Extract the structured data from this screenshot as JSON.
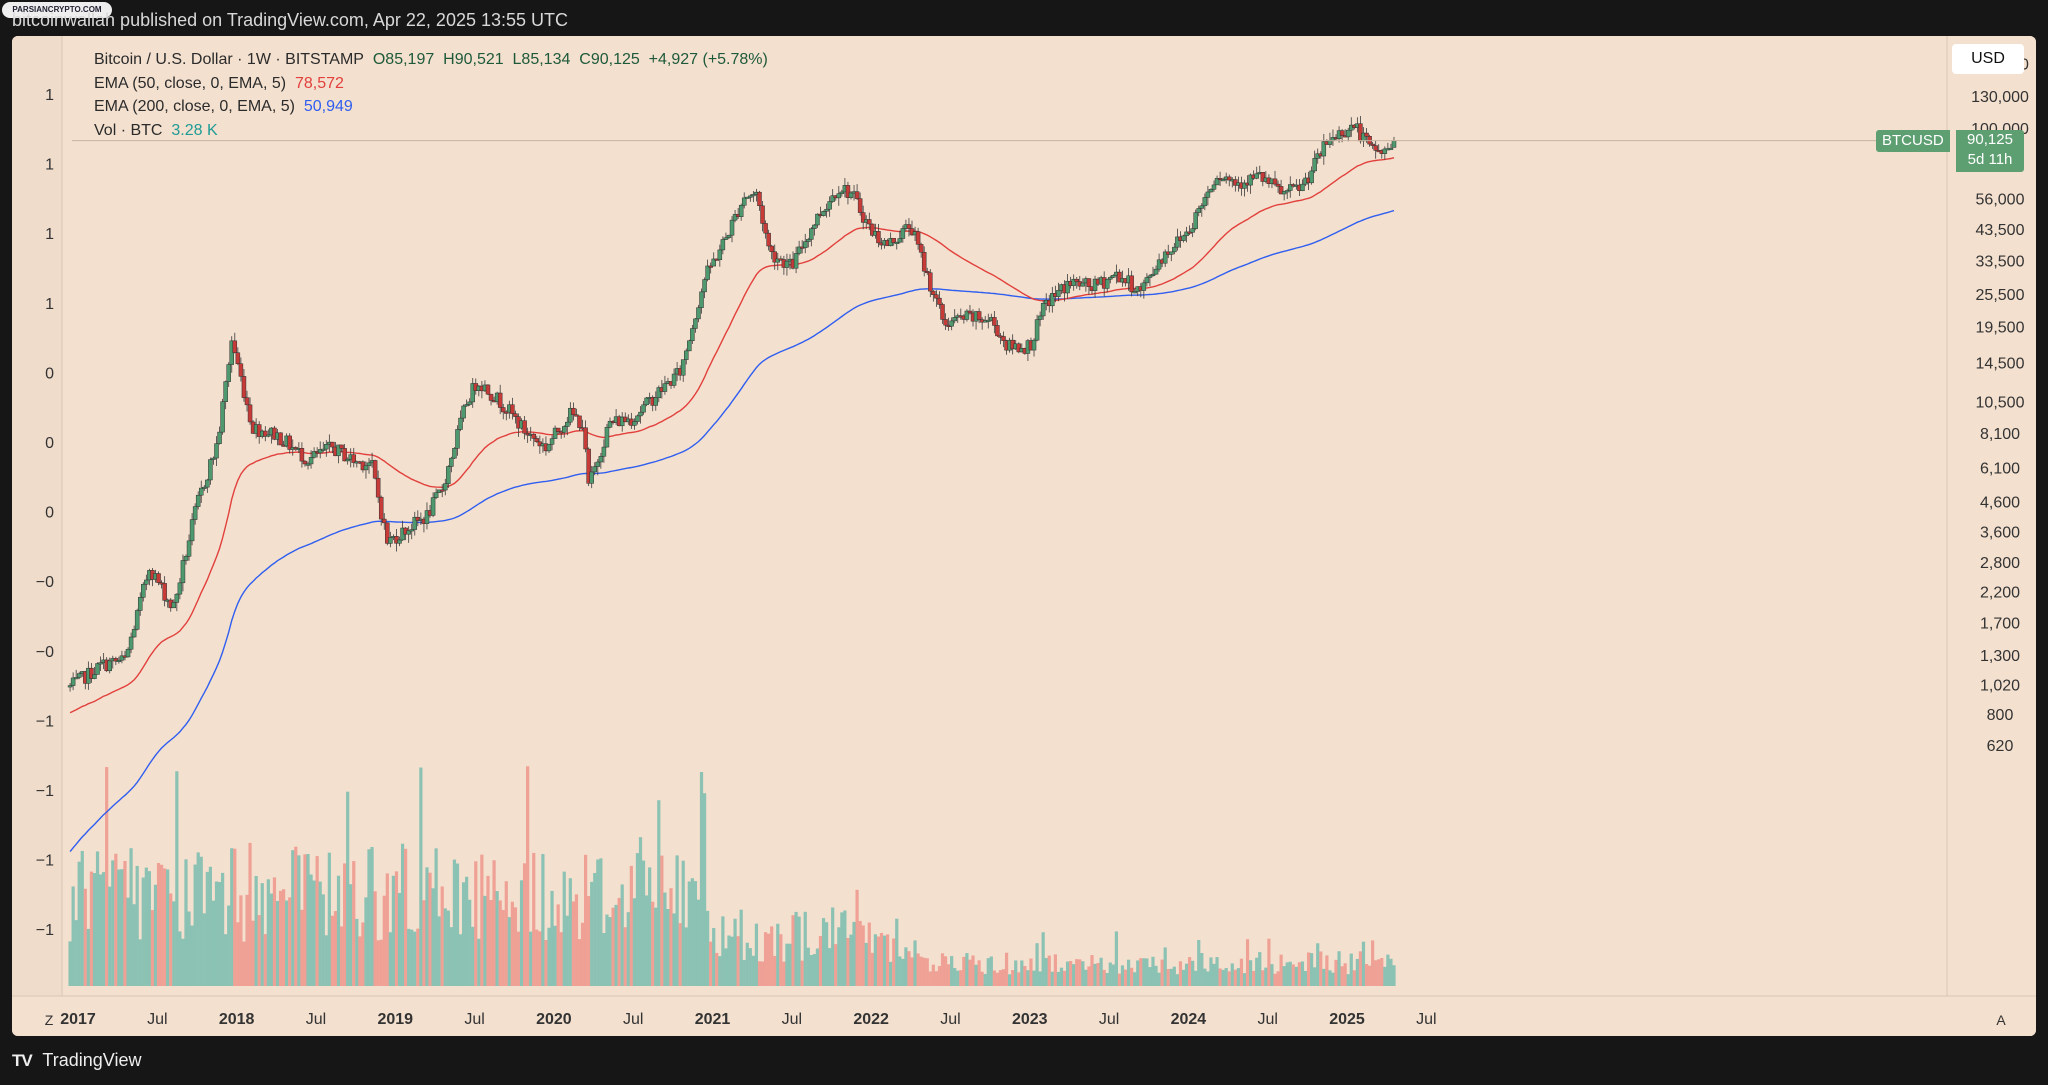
{
  "header": {
    "publisher": "bitcoinwallah published on TradingView.com, Apr 22, 2025 13:55 UTC",
    "watermark": "PARSIANCRYPTO.COM"
  },
  "legend": {
    "symbol": "Bitcoin / U.S. Dollar · 1W · BITSTAMP",
    "open": "O85,197",
    "high": "H90,521",
    "low": "L85,134",
    "close": "C90,125",
    "change": "+4,927 (+5.78%)",
    "ema50_label": "EMA (50, close, 0, EMA, 5)",
    "ema50_value": "78,572",
    "ema200_label": "EMA (200, close, 0, EMA, 5)",
    "ema200_value": "50,949",
    "vol_label": "Vol · BTC",
    "vol_value": "3.28 K"
  },
  "currency_button": "USD",
  "price_tag": {
    "symbol": "BTCUSD",
    "price": "90,125",
    "countdown": "5d 11h"
  },
  "footer": {
    "brand": "TradingView",
    "zoom_button": "Z",
    "auto_button": "A"
  },
  "colors": {
    "background": "#f3e0cf",
    "up": "#4e9a6e",
    "down": "#c63b38",
    "ema50": "#e2403c",
    "ema200": "#2f5ef0",
    "volume_up": "#7fbfb0",
    "volume_down": "#ee9a8f"
  },
  "chart_data": {
    "type": "candlestick",
    "timeframe": "1W",
    "scale": "log",
    "x_ticks": [
      "2017",
      "Jul",
      "2018",
      "Jul",
      "2019",
      "Jul",
      "2020",
      "Jul",
      "2021",
      "Jul",
      "2022",
      "Jul",
      "2023",
      "Jul",
      "2024",
      "Jul",
      "2025",
      "Jul"
    ],
    "y_ticks": [
      "170,000",
      "130,000",
      "100,000",
      "56,000",
      "43,500",
      "33,500",
      "25,500",
      "19,500",
      "14,500",
      "10,500",
      "8,100",
      "6,100",
      "4,600",
      "3,600",
      "2,800",
      "2,200",
      "1,700",
      "1,300",
      "1,020",
      "800",
      "620"
    ],
    "y_ticks_values": [
      170000,
      130000,
      100000,
      56000,
      43500,
      33500,
      25500,
      19500,
      14500,
      10500,
      8100,
      6100,
      4600,
      3600,
      2800,
      2200,
      1700,
      1300,
      1020,
      800,
      620
    ],
    "left_axis_labels": [
      "1",
      "1",
      "1",
      "1",
      "0",
      "0",
      "0",
      "−0",
      "−0",
      "−1",
      "−1",
      "−1",
      "−1"
    ],
    "anchors": [
      [
        2016.95,
        1000
      ],
      [
        2017.15,
        1200
      ],
      [
        2017.3,
        1250
      ],
      [
        2017.45,
        2700
      ],
      [
        2017.6,
        1900
      ],
      [
        2017.75,
        4500
      ],
      [
        2017.88,
        7500
      ],
      [
        2017.97,
        17500
      ],
      [
        2018.1,
        8500
      ],
      [
        2018.25,
        8000
      ],
      [
        2018.45,
        6500
      ],
      [
        2018.6,
        7200
      ],
      [
        2018.75,
        6400
      ],
      [
        2018.85,
        6300
      ],
      [
        2018.95,
        3300
      ],
      [
        2019.05,
        3600
      ],
      [
        2019.2,
        4100
      ],
      [
        2019.3,
        5200
      ],
      [
        2019.45,
        10500
      ],
      [
        2019.52,
        12500
      ],
      [
        2019.7,
        10000
      ],
      [
        2019.82,
        8200
      ],
      [
        2019.95,
        7200
      ],
      [
        2020.1,
        9500
      ],
      [
        2020.18,
        8800
      ],
      [
        2020.22,
        5200
      ],
      [
        2020.35,
        8800
      ],
      [
        2020.5,
        9200
      ],
      [
        2020.65,
        11200
      ],
      [
        2020.8,
        13500
      ],
      [
        2020.95,
        29000
      ],
      [
        2021.08,
        40000
      ],
      [
        2021.2,
        57000
      ],
      [
        2021.28,
        58000
      ],
      [
        2021.36,
        36000
      ],
      [
        2021.5,
        32000
      ],
      [
        2021.65,
        47000
      ],
      [
        2021.8,
        62000
      ],
      [
        2021.88,
        58000
      ],
      [
        2022.0,
        43000
      ],
      [
        2022.1,
        38000
      ],
      [
        2022.25,
        45000
      ],
      [
        2022.35,
        30000
      ],
      [
        2022.46,
        20000
      ],
      [
        2022.6,
        21000
      ],
      [
        2022.76,
        20500
      ],
      [
        2022.86,
        16500
      ],
      [
        2023.0,
        16600
      ],
      [
        2023.1,
        23500
      ],
      [
        2023.25,
        28000
      ],
      [
        2023.4,
        27000
      ],
      [
        2023.55,
        30000
      ],
      [
        2023.7,
        26000
      ],
      [
        2023.82,
        34000
      ],
      [
        2024.0,
        43000
      ],
      [
        2024.18,
        69000
      ],
      [
        2024.3,
        64000
      ],
      [
        2024.45,
        67000
      ],
      [
        2024.6,
        58000
      ],
      [
        2024.72,
        62000
      ],
      [
        2024.88,
        90000
      ],
      [
        2024.98,
        98000
      ],
      [
        2025.05,
        102000
      ],
      [
        2025.15,
        84000
      ],
      [
        2025.25,
        82000
      ],
      [
        2025.3,
        90125
      ]
    ],
    "last_close": 90125,
    "ema50_last": 78572,
    "ema200_last": 50949,
    "volume_last": "3.28 K"
  }
}
